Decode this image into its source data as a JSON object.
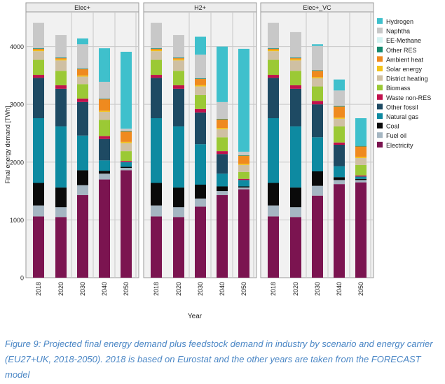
{
  "chart_data": {
    "type": "bar",
    "stacked": true,
    "ylabel": "Final energy demand [TWh]",
    "xlabel": "Year",
    "ylim": [
      0,
      4600
    ],
    "yticks": [
      0,
      1000,
      2000,
      3000,
      4000
    ],
    "grid": true,
    "legend_position": "right",
    "categories": [
      "2018",
      "2020",
      "2030",
      "2040",
      "2050"
    ],
    "carriers": [
      {
        "name": "Electricity",
        "color": "#7b1450"
      },
      {
        "name": "Fuel oil",
        "color": "#a5b6c2"
      },
      {
        "name": "Coal",
        "color": "#0a0a0a"
      },
      {
        "name": "Natural gas",
        "color": "#0e8aa1"
      },
      {
        "name": "Other fossil",
        "color": "#1e4a63"
      },
      {
        "name": "Waste non-RES",
        "color": "#c1124d"
      },
      {
        "name": "Biomass",
        "color": "#9bc935"
      },
      {
        "name": "District heating",
        "color": "#cfc0a3"
      },
      {
        "name": "Solar energy",
        "color": "#f3c31a"
      },
      {
        "name": "Ambient heat",
        "color": "#ef8a1f"
      },
      {
        "name": "Other RES",
        "color": "#14896e"
      },
      {
        "name": "EE-Methane",
        "color": "#d3f2f1"
      },
      {
        "name": "Naphtha",
        "color": "#c8c8c8"
      },
      {
        "name": "Hydrogen",
        "color": "#3fc0cc"
      }
    ],
    "legend_order": [
      "Hydrogen",
      "Naphtha",
      "EE-Methane",
      "Other RES",
      "Ambient heat",
      "Solar energy",
      "District heating",
      "Biomass",
      "Waste non-RES",
      "Other fossil",
      "Natural gas",
      "Coal",
      "Fuel oil",
      "Electricity"
    ],
    "panels": [
      {
        "title": "Elec+",
        "bars": [
          [
            1060,
            190,
            390,
            1120,
            700,
            50,
            260,
            150,
            20,
            20,
            10,
            0,
            440,
            0
          ],
          [
            1050,
            170,
            340,
            1060,
            650,
            60,
            250,
            180,
            20,
            20,
            10,
            0,
            390,
            0
          ],
          [
            1430,
            170,
            260,
            600,
            580,
            60,
            250,
            130,
            20,
            110,
            10,
            0,
            420,
            100
          ],
          [
            1700,
            100,
            50,
            180,
            370,
            50,
            280,
            140,
            20,
            200,
            10,
            0,
            290,
            580
          ],
          [
            1860,
            40,
            20,
            80,
            0,
            20,
            170,
            140,
            20,
            180,
            10,
            0,
            40,
            1330
          ]
        ]
      },
      {
        "title": "H2+",
        "bars": [
          [
            1060,
            190,
            390,
            1120,
            700,
            50,
            260,
            150,
            20,
            20,
            10,
            0,
            440,
            0
          ],
          [
            1050,
            170,
            340,
            1060,
            650,
            60,
            250,
            180,
            20,
            20,
            10,
            0,
            390,
            0
          ],
          [
            1230,
            140,
            240,
            700,
            550,
            60,
            240,
            150,
            20,
            110,
            10,
            0,
            410,
            310
          ],
          [
            1430,
            70,
            80,
            220,
            340,
            50,
            240,
            140,
            20,
            150,
            10,
            0,
            290,
            960
          ],
          [
            1530,
            30,
            20,
            110,
            0,
            20,
            120,
            120,
            20,
            140,
            10,
            0,
            60,
            1780
          ]
        ]
      },
      {
        "title": "Elec+_VC",
        "bars": [
          [
            1060,
            190,
            390,
            1120,
            700,
            50,
            260,
            150,
            20,
            20,
            10,
            0,
            440,
            0
          ],
          [
            1050,
            170,
            340,
            1060,
            650,
            60,
            250,
            180,
            20,
            20,
            10,
            0,
            440,
            0
          ],
          [
            1420,
            170,
            250,
            590,
            570,
            60,
            250,
            140,
            20,
            110,
            10,
            0,
            420,
            30
          ],
          [
            1620,
            70,
            50,
            190,
            370,
            40,
            280,
            130,
            20,
            190,
            10,
            0,
            270,
            190
          ],
          [
            1650,
            40,
            20,
            40,
            0,
            20,
            180,
            120,
            20,
            180,
            10,
            0,
            0,
            480
          ]
        ]
      }
    ]
  },
  "caption": "Figure 9: Projected final energy demand plus feedstock demand in industry by scenario and energy carrier (EU27+UK, 2018-2050). 2018 is based on Eurostat and the other years are taken from the FORECAST model"
}
